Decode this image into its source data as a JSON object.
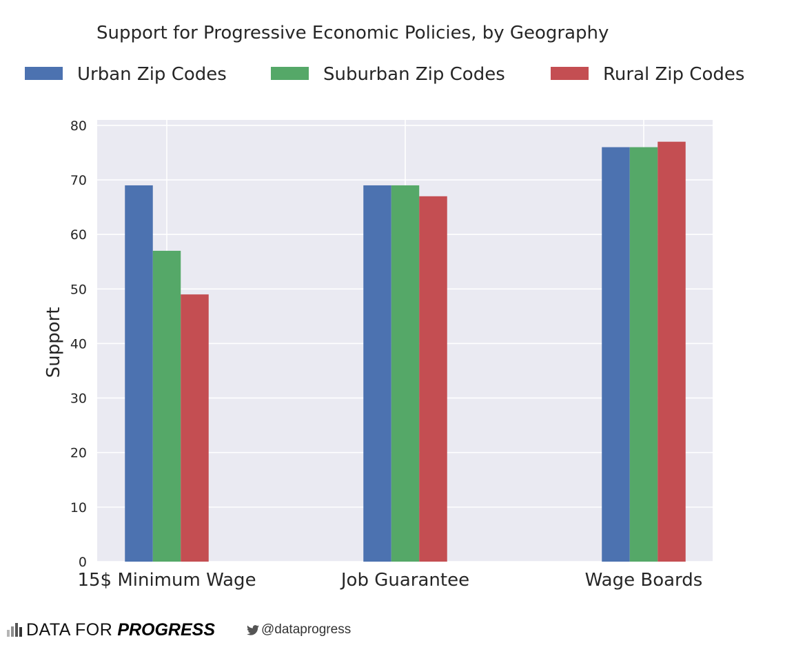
{
  "chart_data": {
    "type": "bar",
    "title": "Support for Progressive Economic Policies, by Geography",
    "xlabel": "",
    "ylabel": "Support",
    "categories": [
      "15$ Minimum Wage",
      "Job Guarantee",
      "Wage Boards"
    ],
    "series": [
      {
        "name": "Urban Zip Codes",
        "values": [
          69,
          69,
          76
        ],
        "color": "#4c72b0"
      },
      {
        "name": "Suburban Zip Codes",
        "values": [
          57,
          69,
          76
        ],
        "color": "#55a868"
      },
      {
        "name": "Rural Zip Codes",
        "values": [
          49,
          67,
          77
        ],
        "color": "#c44e52"
      }
    ],
    "ylim": [
      0,
      81
    ],
    "yticks": [
      0,
      10,
      20,
      30,
      40,
      50,
      60,
      70,
      80
    ],
    "grid": true,
    "legend_position": "top",
    "background_color": "#eaeaf2",
    "grid_color": "#ffffff"
  },
  "footer": {
    "brand_prefix": "DATA FOR",
    "brand_emphasis": "PROGRESS",
    "twitter_handle": "@dataprogress"
  },
  "icons": {
    "brand_logo": "bar-chart-logo-icon",
    "twitter": "twitter-bird-icon"
  }
}
